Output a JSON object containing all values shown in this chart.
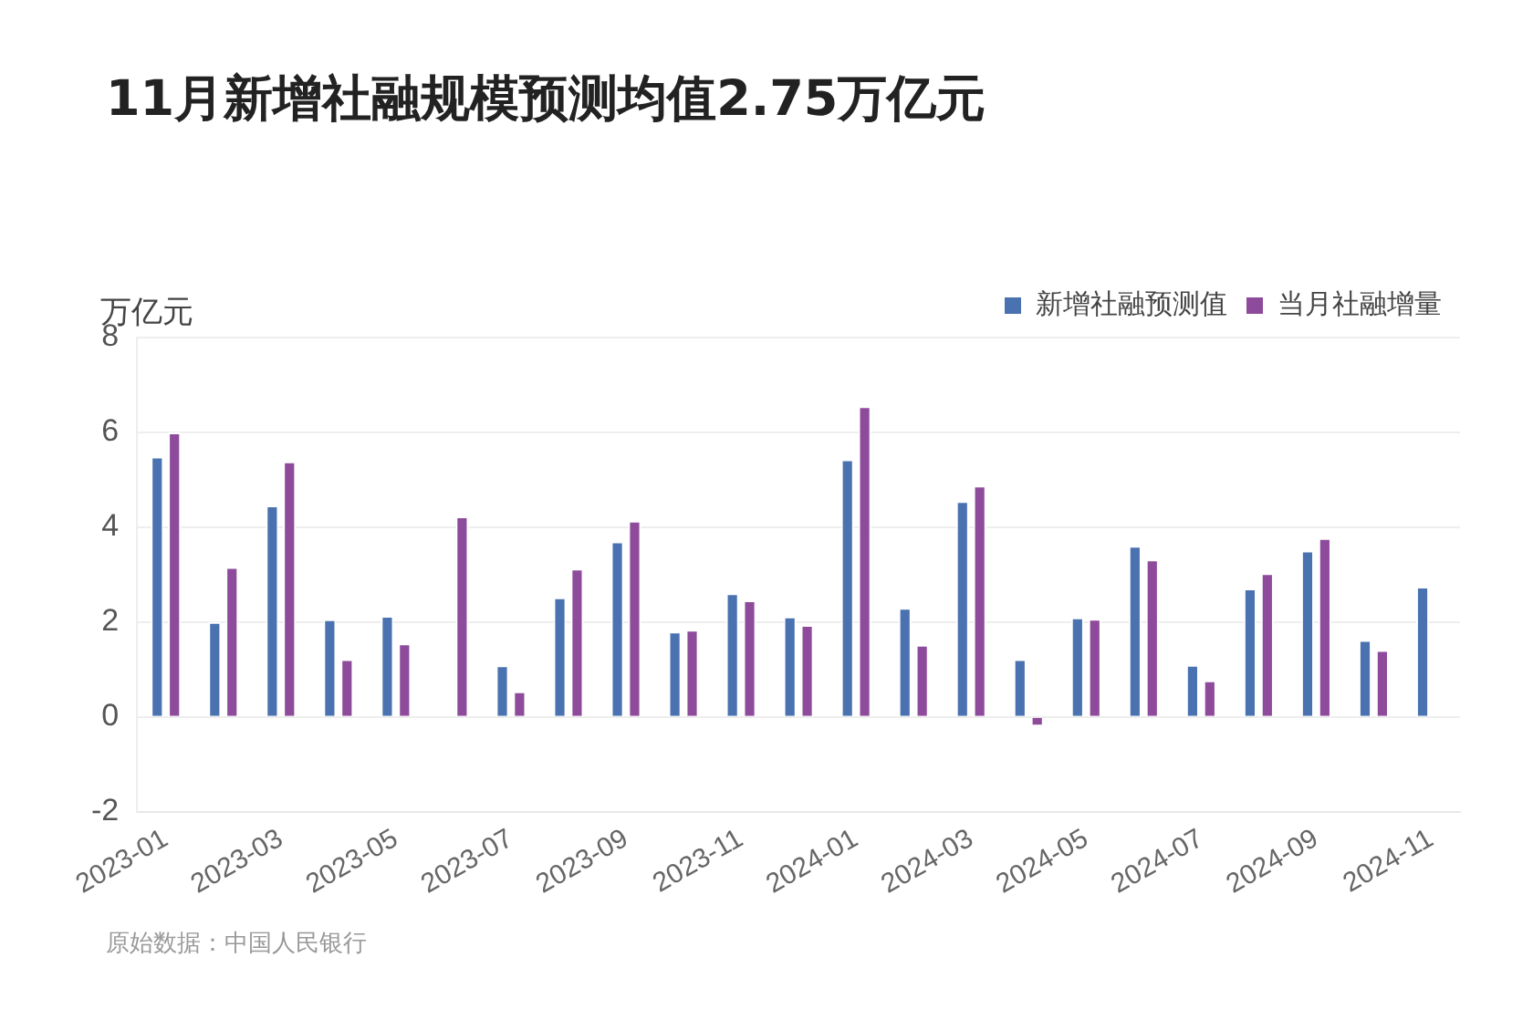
{
  "chart_data": {
    "type": "bar",
    "title": "11月新增社融规模预测均值2.75万亿元",
    "ylabel": "万亿元",
    "categories": [
      "2023-01",
      null,
      "2023-03",
      null,
      "2023-05",
      null,
      "2023-07",
      null,
      "2023-09",
      null,
      "2023-11",
      null,
      "2024-01",
      null,
      "2024-03",
      null,
      "2024-05",
      null,
      "2024-07",
      null,
      "2024-09",
      null,
      "2024-11"
    ],
    "series": [
      {
        "name": "新增社融预测值",
        "color": "#4a72b0",
        "values": [
          5.49,
          2.0,
          4.46,
          2.06,
          2.13,
          null,
          1.09,
          2.52,
          3.7,
          1.8,
          2.61,
          2.12,
          5.43,
          2.3,
          4.55,
          1.22,
          2.1,
          3.61,
          1.1,
          2.71,
          3.51,
          1.62,
          2.75
        ]
      },
      {
        "name": "当月社融增量",
        "color": "#8e4b9b",
        "values": [
          6.0,
          3.16,
          5.39,
          1.22,
          1.55,
          4.23,
          0.54,
          3.13,
          4.14,
          1.84,
          2.46,
          1.94,
          6.55,
          1.52,
          4.88,
          -0.2,
          2.07,
          3.32,
          0.77,
          3.03,
          3.77,
          1.41,
          null
        ]
      }
    ],
    "ylim": [
      -2,
      8
    ],
    "yticks": [
      -2,
      0,
      2,
      4,
      6,
      8
    ],
    "grid": "y",
    "legend": "top right",
    "annotations": [
      "原始数据：中国人民银行"
    ]
  }
}
